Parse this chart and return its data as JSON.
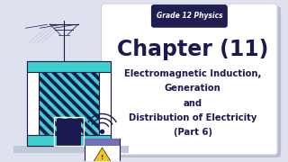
{
  "bg_color": "#dde2ee",
  "card_color": "#ffffff",
  "card_shadow_color": "#b8bdd0",
  "badge_bg_color": "#1e1e50",
  "badge_text": "Grade 12 Physics",
  "badge_text_color": "#ffffff",
  "badge_fontsize": 5.5,
  "title": "Chapter (11)",
  "title_color": "#1a1a50",
  "title_fontsize": 17,
  "subtitle_lines": [
    "Electromagnetic Induction,",
    "Generation",
    "and",
    "Distribution of Electricity",
    "(Part 6)"
  ],
  "subtitle_color": "#1a1a50",
  "subtitle_fontsize": 7.2,
  "factory_teal": "#3ecfcf",
  "factory_dark": "#1a1a50",
  "factory_white": "#ffffff"
}
